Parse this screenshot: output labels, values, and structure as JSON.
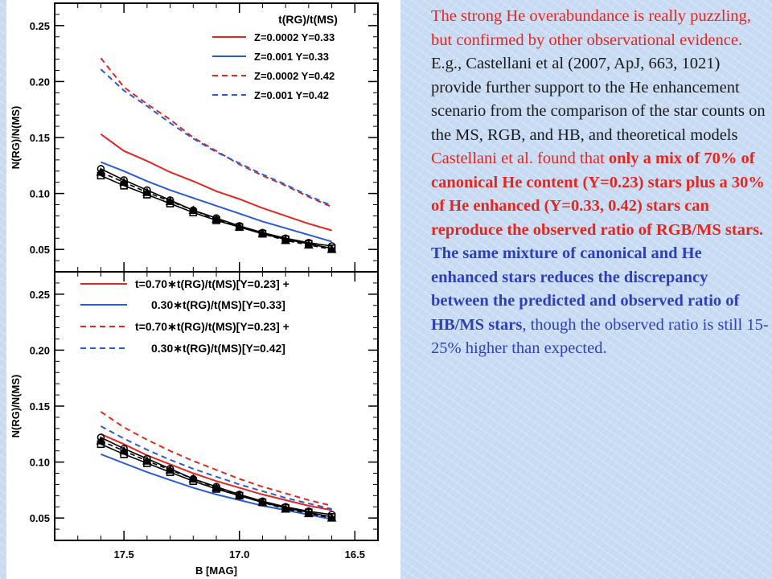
{
  "chart_data": [
    {
      "type": "line",
      "title": "",
      "ylabel": "N(RG)/N(MS)",
      "xlabel": "",
      "xlim": [
        17.8,
        16.4
      ],
      "ylim": [
        0.03,
        0.27
      ],
      "xticks": [
        "17.5",
        "17.0",
        "16.5"
      ],
      "yticks": [
        "0.05",
        "0.10",
        "0.15",
        "0.20",
        "0.25"
      ],
      "legend_title": "t(RG)/t(MS)",
      "legend_position": "top-right",
      "legend": [
        {
          "label": "Z=0.0002   Y=0.33",
          "color": "#e3261f",
          "dash": false
        },
        {
          "label": "Z=0.001    Y=0.33",
          "color": "#2a5bd7",
          "dash": false
        },
        {
          "label": "Z=0.0002   Y=0.42",
          "color": "#e3261f",
          "dash": true
        },
        {
          "label": "Z=0.001    Y=0.42",
          "color": "#2a5bd7",
          "dash": true
        }
      ],
      "x": [
        17.6,
        17.5,
        17.4,
        17.3,
        17.2,
        17.1,
        17.0,
        16.9,
        16.8,
        16.7,
        16.6
      ],
      "series": [
        {
          "color": "#e3261f",
          "dash": false,
          "values": [
            0.153,
            0.138,
            0.129,
            0.119,
            0.111,
            0.102,
            0.095,
            0.087,
            0.08,
            0.073,
            0.067
          ]
        },
        {
          "color": "#2a5bd7",
          "dash": false,
          "values": [
            0.128,
            0.12,
            0.111,
            0.103,
            0.096,
            0.089,
            0.082,
            0.075,
            0.069,
            0.063,
            0.057
          ]
        },
        {
          "color": "#e3261f",
          "dash": true,
          "values": [
            0.221,
            0.195,
            0.18,
            0.166,
            0.15,
            0.138,
            0.126,
            0.116,
            0.107,
            0.097,
            0.088
          ]
        },
        {
          "color": "#2a5bd7",
          "dash": true,
          "values": [
            0.211,
            0.192,
            0.178,
            0.163,
            0.149,
            0.137,
            0.127,
            0.117,
            0.108,
            0.098,
            0.089
          ]
        },
        {
          "color": "#000000",
          "dash": false,
          "marker": "circle",
          "values": [
            0.122,
            0.112,
            0.103,
            0.094,
            0.085,
            0.078,
            0.071,
            0.065,
            0.06,
            0.056,
            0.053
          ]
        },
        {
          "color": "#000000",
          "dash": false,
          "marker": "square",
          "values": [
            0.116,
            0.107,
            0.099,
            0.091,
            0.083,
            0.076,
            0.07,
            0.064,
            0.059,
            0.055,
            0.051
          ]
        },
        {
          "color": "#000000",
          "dash": true,
          "marker": "triangle",
          "values": [
            0.119,
            0.11,
            0.101,
            0.093,
            0.085,
            0.077,
            0.07,
            0.064,
            0.058,
            0.054,
            0.05
          ]
        }
      ]
    },
    {
      "type": "line",
      "title": "",
      "ylabel": "N(RG)/N(MS)",
      "xlabel": "B [MAG]",
      "xlim": [
        17.8,
        16.4
      ],
      "ylim": [
        0.03,
        0.27
      ],
      "xticks": [
        "17.5",
        "17.0",
        "16.5"
      ],
      "yticks": [
        "0.05",
        "0.10",
        "0.15",
        "0.20",
        "0.25"
      ],
      "legend_position": "top",
      "legend": [
        {
          "label": "t=0.70∗t(RG)/t(MS)[Y=0.23]  +",
          "color": "#e3261f",
          "dash": false
        },
        {
          "label": "0.30∗t(RG)/t(MS)[Y=0.33]",
          "color": "#2a5bd7",
          "dash": false
        },
        {
          "label": "t=0.70∗t(RG)/t(MS)[Y=0.23]  +",
          "color": "#e3261f",
          "dash": true
        },
        {
          "label": "0.30∗t(RG)/t(MS)[Y=0.42]",
          "color": "#2a5bd7",
          "dash": true
        }
      ],
      "x": [
        17.6,
        17.5,
        17.4,
        17.3,
        17.2,
        17.1,
        17.0,
        16.9,
        16.8,
        16.7,
        16.6
      ],
      "series": [
        {
          "color": "#e3261f",
          "dash": false,
          "values": [
            0.125,
            0.116,
            0.106,
            0.098,
            0.09,
            0.083,
            0.077,
            0.071,
            0.066,
            0.061,
            0.057
          ]
        },
        {
          "color": "#2a5bd7",
          "dash": false,
          "values": [
            0.107,
            0.099,
            0.091,
            0.084,
            0.077,
            0.071,
            0.066,
            0.061,
            0.057,
            0.053,
            0.049
          ]
        },
        {
          "color": "#e3261f",
          "dash": true,
          "values": [
            0.145,
            0.131,
            0.12,
            0.11,
            0.101,
            0.093,
            0.085,
            0.078,
            0.072,
            0.066,
            0.061
          ]
        },
        {
          "color": "#2a5bd7",
          "dash": true,
          "values": [
            0.132,
            0.121,
            0.111,
            0.102,
            0.094,
            0.087,
            0.08,
            0.074,
            0.068,
            0.063,
            0.058
          ]
        },
        {
          "color": "#000000",
          "dash": false,
          "marker": "circle",
          "values": [
            0.122,
            0.112,
            0.103,
            0.094,
            0.085,
            0.078,
            0.071,
            0.065,
            0.06,
            0.056,
            0.053
          ]
        },
        {
          "color": "#000000",
          "dash": false,
          "marker": "square",
          "values": [
            0.116,
            0.107,
            0.099,
            0.091,
            0.083,
            0.076,
            0.07,
            0.064,
            0.059,
            0.055,
            0.051
          ]
        },
        {
          "color": "#000000",
          "dash": true,
          "marker": "triangle",
          "values": [
            0.119,
            0.11,
            0.101,
            0.093,
            0.085,
            0.077,
            0.07,
            0.064,
            0.058,
            0.054,
            0.05
          ]
        }
      ]
    }
  ],
  "text": {
    "p1": "The strong He overabundance is really puzzling, but confirmed by other observational evidence.",
    "p2": "E.g., Castellani et al (2007, ApJ, 663, 1021) provide further support to the He enhancement scenario from the comparison of the star counts on the MS, RGB, and HB, and theoretical models",
    "p3a": "Castellani et al. found that ",
    "p3b": "only a mix of 70% of canonical He content (Y=0.23) stars plus a 30% of He enhanced (Y=0.33, 0.42) stars can reproduce the observed ratio of RGB/MS stars.",
    "p4a": "The same mixture of canonical and He enhanced stars reduces the discrepancy between the predicted and observed ratio of HB/MS stars",
    "p4b": ", though the observed ratio is still 15-25% higher than expected."
  },
  "colors": {
    "red": "#e3261f",
    "blue": "#2e3fb8",
    "line_blue": "#2a5bd7"
  }
}
